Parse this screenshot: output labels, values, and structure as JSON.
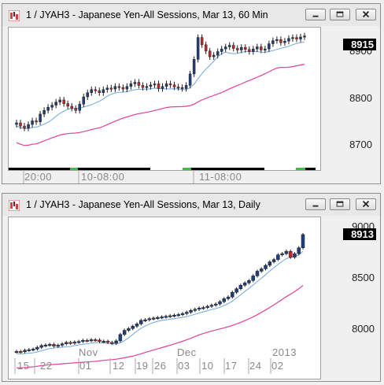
{
  "window1": {
    "title": "1 / JYAH3 - Japanese Yen-All Sessions, Mar 13, 60 Min",
    "last_price": "8915",
    "y_axis_labels": [
      "8900",
      "8800",
      "8700"
    ],
    "x_axis_labels": [
      "20:00",
      "10-08:00",
      "11-08:00"
    ],
    "icons": {
      "app": "chart-app-icon",
      "minimize": "minimize-icon",
      "maximize": "maximize-icon",
      "close": "close-icon"
    }
  },
  "window2": {
    "title": "1 / JYAH3 - Japanese Yen-All Sessions, Mar 13, Daily",
    "last_price": "8913",
    "y_axis_labels": [
      "9000",
      "8500",
      "8000"
    ],
    "month_labels": [
      "Nov",
      "Dec",
      "2013"
    ],
    "day_labels": [
      "15",
      "22",
      "01",
      "12",
      "19",
      "26",
      "03",
      "10",
      "17",
      "24",
      "02"
    ],
    "icons": {
      "app": "chart-app-icon",
      "minimize": "minimize-icon",
      "maximize": "maximize-icon",
      "close": "close-icon"
    }
  },
  "colors": {
    "up_candle": "#1f3f7a",
    "down_candle": "#c0292b",
    "fast_ma": "#6fa8dc",
    "slow_ma": "#e0409a",
    "session_on": "#33c24a",
    "session_off": "#000000"
  },
  "chart_data": [
    {
      "type": "candlestick",
      "title": "1 / JYAH3 - Japanese Yen-All Sessions, Mar 13, 60 Min",
      "ylim": [
        8665,
        8925
      ],
      "x_tick_labels": [
        "20:00",
        "10-08:00",
        "11-08:00"
      ],
      "y_tick_labels": [
        8900,
        8800,
        8700
      ],
      "last_value": 8915,
      "close": [
        8748,
        8742,
        8738,
        8745,
        8752,
        8750,
        8765,
        8772,
        8778,
        8782,
        8788,
        8792,
        8785,
        8780,
        8776,
        8772,
        8784,
        8798,
        8806,
        8812,
        8810,
        8806,
        8812,
        8815,
        8813,
        8818,
        8816,
        8813,
        8818,
        8823,
        8826,
        8820,
        8816,
        8818,
        8821,
        8823,
        8814,
        8818,
        8823,
        8821,
        8817,
        8816,
        8814,
        8820,
        8842,
        8870,
        8912,
        8898,
        8886,
        8875,
        8878,
        8885,
        8890,
        8894,
        8897,
        8891,
        8888,
        8893,
        8889,
        8885,
        8890,
        8894,
        8888,
        8890,
        8900,
        8906,
        8908,
        8902,
        8905,
        8910,
        8912,
        8909,
        8913,
        8915
      ],
      "series": [
        {
          "name": "",
          "type": "moving_average_fast"
        },
        {
          "name": "",
          "type": "moving_average_slow"
        }
      ]
    },
    {
      "type": "candlestick",
      "title": "1 / JYAH3 - Japanese Yen-All Sessions, Mar 13, Daily",
      "ylim": [
        7850,
        9020
      ],
      "x_tick_labels": [
        "15",
        "22",
        "01",
        "12",
        "19",
        "26",
        "03",
        "10",
        "17",
        "24",
        "02"
      ],
      "month_labels": [
        "Nov",
        "Dec",
        "2013"
      ],
      "y_tick_labels": [
        9000,
        8500,
        8000
      ],
      "last_value": 8913,
      "close": [
        7915,
        7912,
        7925,
        7930,
        7935,
        7950,
        7965,
        7970,
        7975,
        7960,
        7968,
        7980,
        7992,
        7985,
        7995,
        8000,
        8010,
        8008,
        8015,
        8012,
        8000,
        8002,
        7992,
        7985,
        8005,
        8060,
        8095,
        8110,
        8130,
        8150,
        8180,
        8185,
        8195,
        8200,
        8205,
        8210,
        8215,
        8220,
        8225,
        8230,
        8238,
        8250,
        8265,
        8275,
        8285,
        8290,
        8300,
        8310,
        8320,
        8340,
        8365,
        8380,
        8420,
        8450,
        8480,
        8500,
        8520,
        8560,
        8600,
        8620,
        8650,
        8680,
        8700,
        8740,
        8750,
        8770,
        8720,
        8750,
        8800,
        8913
      ],
      "series": [
        {
          "name": "",
          "type": "moving_average_fast"
        },
        {
          "name": "",
          "type": "moving_average_slow"
        }
      ]
    }
  ]
}
